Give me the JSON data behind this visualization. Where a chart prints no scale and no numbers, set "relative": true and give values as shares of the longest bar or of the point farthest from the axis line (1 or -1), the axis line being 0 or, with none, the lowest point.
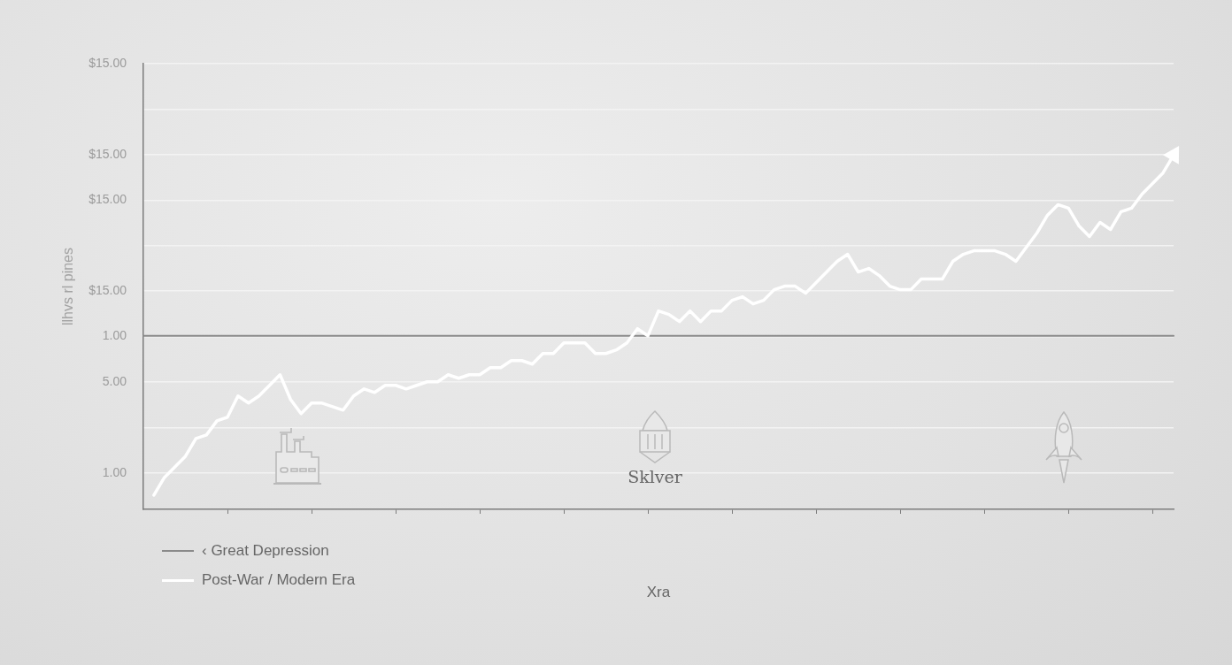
{
  "chart_data": {
    "type": "line",
    "xlabel": "Xra",
    "ylabel": "llhvs rl pines",
    "annotations": [
      "Sklver"
    ],
    "relative": true,
    "categories": [
      null,
      null,
      null,
      null,
      null,
      null,
      null,
      null,
      null,
      null,
      null,
      null,
      null,
      null,
      null,
      null,
      null,
      null,
      null,
      null,
      null,
      null,
      null,
      null,
      null,
      null,
      null,
      null,
      null,
      null,
      null,
      null,
      null,
      null,
      null,
      null,
      null,
      null,
      null,
      null,
      null,
      null,
      null,
      null,
      null,
      null,
      null,
      null,
      null,
      null,
      null,
      null,
      null,
      null,
      null,
      null,
      null,
      null,
      null,
      null,
      null,
      null,
      null,
      null,
      null,
      null,
      null,
      null,
      null,
      null,
      null,
      null,
      null,
      null,
      null,
      null,
      null,
      null,
      null,
      null,
      null,
      null,
      null,
      null,
      null,
      null,
      null,
      null,
      null,
      null,
      null,
      null,
      null,
      null,
      null,
      null,
      null,
      null,
      null
    ],
    "y_categories": [
      "$15.00",
      null,
      "$15.00",
      "$15.00",
      null,
      "$15.00",
      "1.00",
      "5.00",
      null,
      "1.00"
    ],
    "series": [
      {
        "name": "‹ Great Depression",
        "color": "#8a8a8a",
        "values": [
          0.49,
          0.49,
          0.49,
          0.49,
          0.49,
          0.49,
          0.49,
          0.49,
          0.49,
          0.49,
          0.49,
          0.49,
          0.49,
          0.49,
          0.49,
          0.49,
          0.49,
          0.49,
          0.49,
          0.49,
          0.49,
          0.49,
          0.49,
          0.49,
          0.49,
          0.49,
          0.49,
          0.49,
          0.49,
          0.49,
          0.49,
          0.49,
          0.49,
          0.49,
          0.49,
          0.49,
          0.49,
          0.49,
          0.49,
          0.49,
          0.49,
          0.49,
          0.49,
          0.49,
          0.49,
          0.49,
          0.49,
          0.49,
          0.49,
          0.49,
          0.49,
          0.49,
          0.49,
          0.49,
          0.49,
          0.49,
          0.49,
          0.49,
          0.49,
          0.49,
          0.49,
          0.49,
          0.49,
          0.49,
          0.49,
          0.49,
          0.49,
          0.49,
          0.49,
          0.49,
          0.49,
          0.49,
          0.49,
          0.49,
          0.49,
          0.49,
          0.49,
          0.49,
          0.49,
          0.49,
          0.49,
          0.49,
          0.49,
          0.49,
          0.49,
          0.49,
          0.49,
          0.49,
          0.49,
          0.49,
          0.49,
          0.49,
          0.49,
          0.49,
          0.49,
          0.49,
          0.49,
          0.49,
          0.49
        ]
      },
      {
        "name": "Post-War / Modern Era",
        "color": "#ffffff",
        "values": [
          null,
          0.04,
          0.09,
          0.12,
          0.15,
          0.2,
          0.21,
          0.25,
          0.26,
          0.32,
          0.3,
          0.32,
          0.35,
          0.38,
          0.31,
          0.27,
          0.3,
          0.3,
          0.29,
          0.28,
          0.32,
          0.34,
          0.33,
          0.35,
          0.35,
          0.34,
          0.35,
          0.36,
          0.36,
          0.38,
          0.37,
          0.38,
          0.38,
          0.4,
          0.4,
          0.42,
          0.42,
          0.41,
          0.44,
          0.44,
          0.47,
          0.47,
          0.47,
          0.44,
          0.44,
          0.45,
          0.47,
          0.51,
          0.49,
          0.56,
          0.55,
          0.53,
          0.56,
          0.53,
          0.56,
          0.56,
          0.59,
          0.6,
          0.58,
          0.59,
          0.62,
          0.63,
          0.63,
          0.61,
          0.64,
          0.67,
          0.7,
          0.72,
          0.67,
          0.68,
          0.66,
          0.63,
          0.62,
          0.62,
          0.65,
          0.65,
          0.65,
          0.7,
          0.72,
          0.73,
          0.73,
          0.73,
          0.72,
          0.7,
          0.74,
          0.78,
          0.83,
          0.86,
          0.85,
          0.8,
          0.77,
          0.81,
          0.79,
          0.84,
          0.85,
          0.89,
          0.92,
          0.95,
          1
        ]
      }
    ],
    "grid": "y",
    "legend": "bottom left",
    "tick_labels": "y"
  }
}
